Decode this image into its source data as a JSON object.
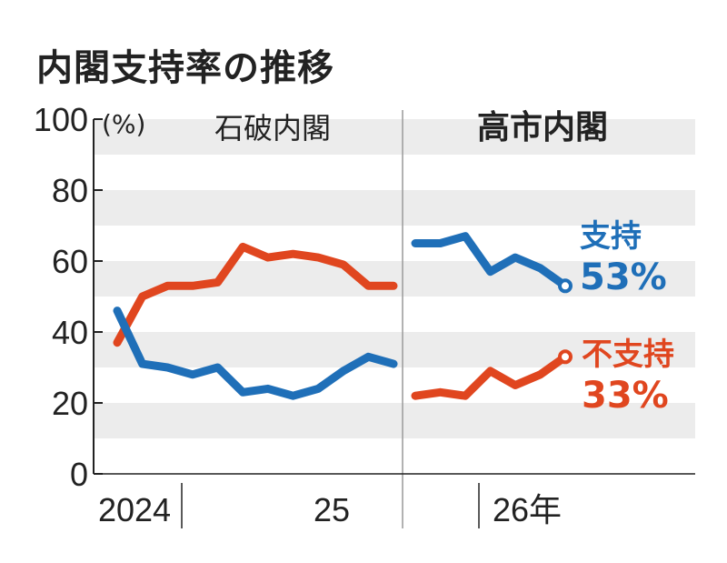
{
  "chart_data": {
    "type": "line",
    "title": "内閣支持率の推移",
    "ylabel": "(%)",
    "ylim": [
      0,
      100
    ],
    "yticks": [
      0,
      20,
      40,
      60,
      80,
      100
    ],
    "xtick_labels": [
      "2024",
      "25",
      "26年"
    ],
    "grid": "alternating horizontal bands every 10",
    "periods": [
      {
        "name": "石破内閣",
        "support": [
          46,
          31,
          30,
          28,
          30,
          23,
          24,
          22,
          24,
          29,
          33,
          31
        ],
        "nonsupport": [
          37,
          50,
          53,
          53,
          54,
          64,
          61,
          62,
          61,
          59,
          53,
          53
        ]
      },
      {
        "name": "高市内閣",
        "support": [
          65,
          65,
          67,
          57,
          61,
          58,
          53
        ],
        "nonsupport": [
          22,
          23,
          22,
          29,
          25,
          28,
          33
        ]
      }
    ],
    "series": [
      {
        "name": "支持",
        "color": "#1f6fb8",
        "latest_label": "53%"
      },
      {
        "name": "不支持",
        "color": "#e0461f",
        "latest_label": "33%"
      }
    ]
  }
}
